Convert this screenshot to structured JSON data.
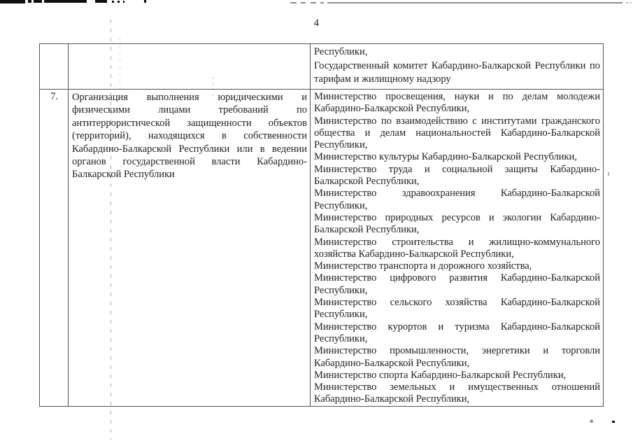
{
  "page": {
    "number": "4"
  },
  "table": {
    "rows": [
      {
        "num": "",
        "task": "",
        "executors": [
          "Республики,",
          "Государственный комитет Кабардино-Балкарской Республики по тарифам и жилищному надзору"
        ]
      },
      {
        "num": "7.",
        "task": "Организация выполнения юридическими и физическими лицами требований по антитеррористической защищенности объектов (территорий), находящихся в собственности Кабардино-Балкарской Республики или в ведении органов государственной власти Кабардино-Балкарской Республики",
        "executors": [
          "Министерство просвещения, науки и по делам молодежи Кабардино-Балкарской Республики,",
          "Министерство по взаимодействию с институтами гражданского общества и делам национальностей Кабардино-Балкарской Республики,",
          "Министерство культуры Кабардино-Балкарской Республики,",
          "Министерство труда и социальной защиты Кабардино-Балкарской Республики,",
          "Министерство здравоохранения Кабардино-Балкарской Республики,",
          "Министерство природных ресурсов и экологии Кабардино-Балкарской Республики,",
          "Министерство строительства и жилищно-коммунального хозяйства Кабардино-Балкарской Республики,",
          "Министерство транспорта и дорожного хозяйства,",
          "Министерство цифрового развития Кабардино-Балкарской Республики,",
          "Министерство сельского хозяйства Кабардино-Балкарской Республики,",
          "Министерство курортов и туризма Кабардино-Балкарской Республики,",
          "Министерство промышленности, энергетики и торговли Кабардино-Балкарской Республики,",
          "Министерство спорта Кабардино-Балкарской Республики,",
          "Министерство земельных и имущественных отношений Кабардино-Балкарской Республики,"
        ]
      }
    ]
  }
}
